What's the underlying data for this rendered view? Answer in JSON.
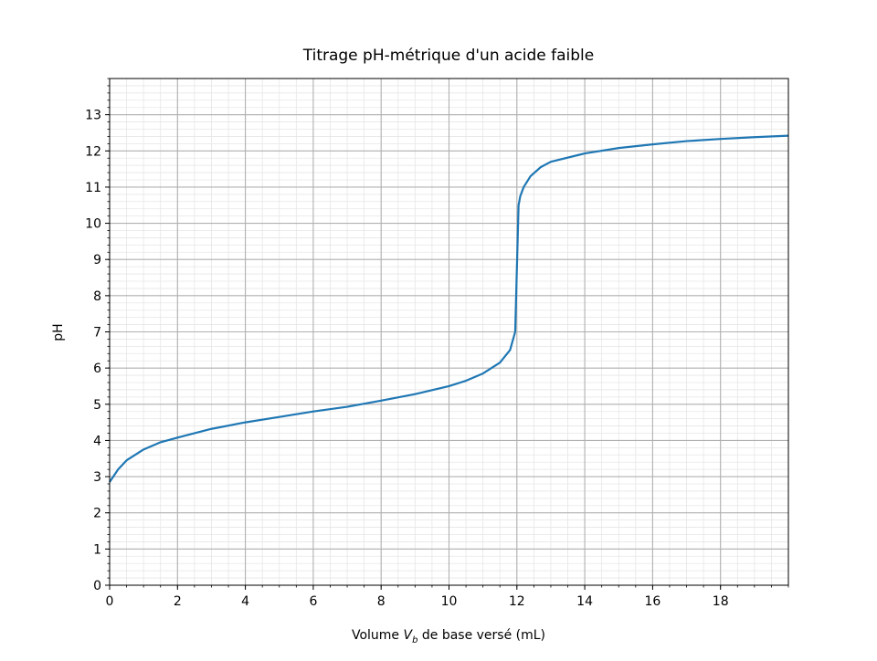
{
  "chart_data": {
    "type": "line",
    "title": "Titrage pH-métrique d'un acide faible",
    "xlabel": [
      "Volume ",
      "V",
      "b",
      " de base versé (mL)"
    ],
    "ylabel": "pH",
    "xlim": [
      0,
      20
    ],
    "ylim": [
      0,
      14
    ],
    "xticks": [
      0,
      2,
      4,
      6,
      8,
      10,
      12,
      14,
      16,
      18
    ],
    "yticks": [
      0,
      1,
      2,
      3,
      4,
      5,
      6,
      7,
      8,
      9,
      10,
      11,
      12,
      13
    ],
    "grid": true,
    "minor_grid": true,
    "x": [
      0,
      0.25,
      0.5,
      1,
      1.5,
      2,
      3,
      4,
      5,
      6,
      7,
      8,
      9,
      10,
      10.5,
      11,
      11.5,
      11.8,
      11.95,
      12.05,
      12.1,
      12.2,
      12.4,
      12.7,
      13,
      14,
      15,
      16,
      17,
      18,
      19,
      20
    ],
    "series": [
      {
        "name": "pH",
        "color": "#1f77b4",
        "values": [
          2.85,
          3.2,
          3.45,
          3.75,
          3.95,
          4.08,
          4.32,
          4.5,
          4.65,
          4.8,
          4.93,
          5.1,
          5.28,
          5.5,
          5.65,
          5.85,
          6.15,
          6.5,
          7.0,
          10.5,
          10.75,
          11.0,
          11.3,
          11.55,
          11.7,
          11.93,
          12.08,
          12.18,
          12.27,
          12.33,
          12.38,
          12.42
        ]
      }
    ]
  }
}
